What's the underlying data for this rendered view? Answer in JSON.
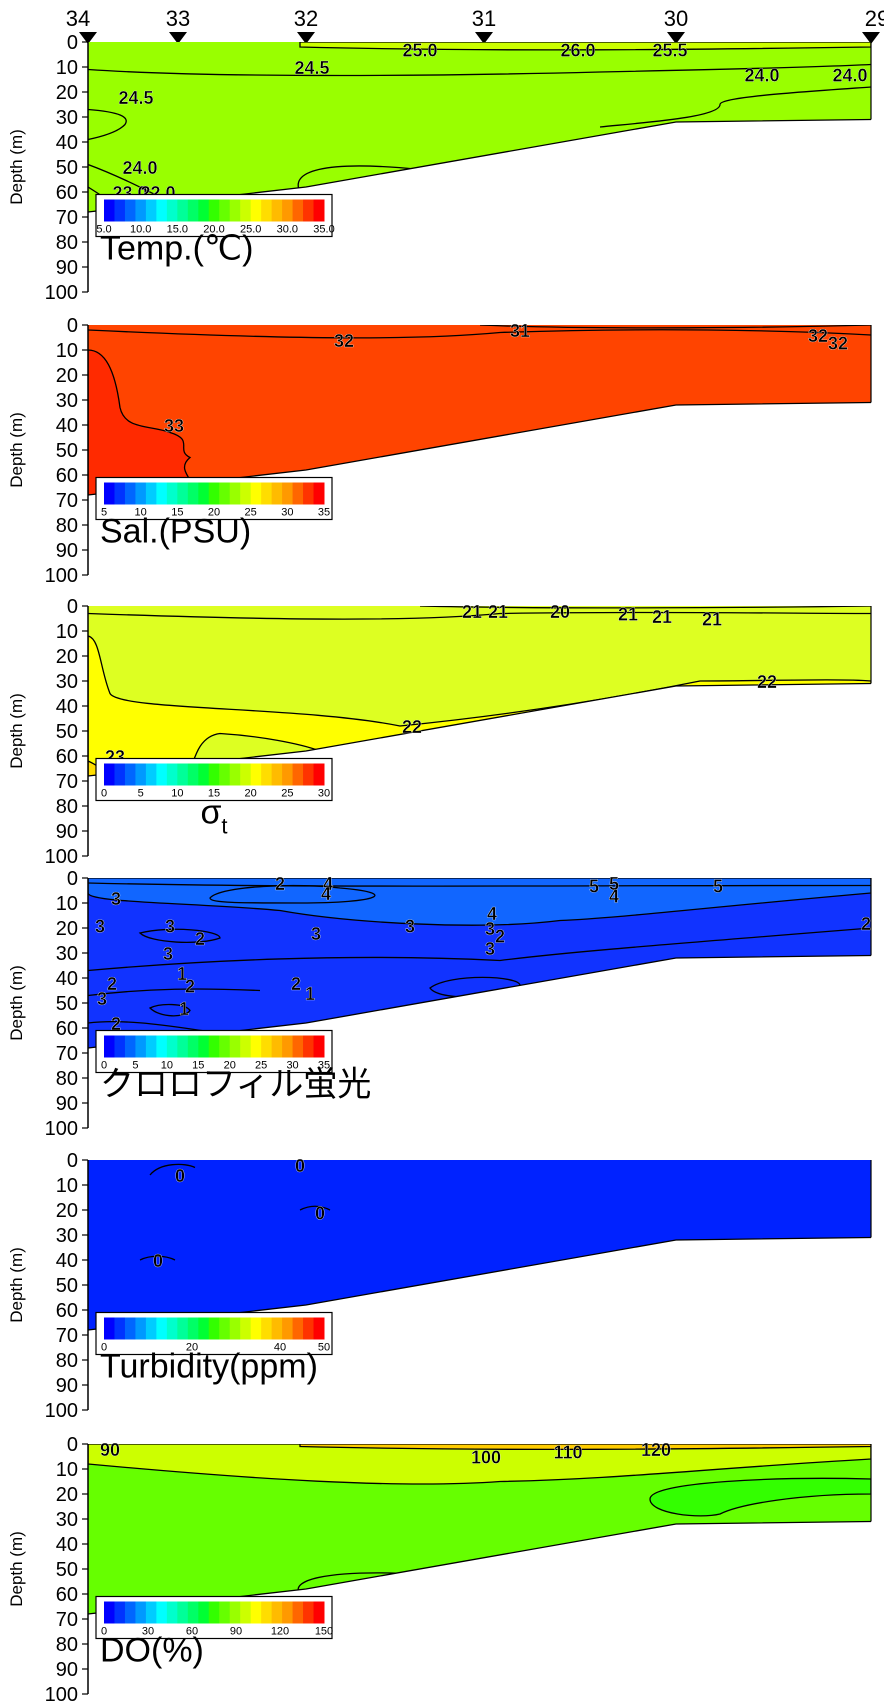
{
  "stations": [
    "34",
    "33",
    "32",
    "31",
    "30",
    "29"
  ],
  "y_axis": {
    "label": "Depth (m)",
    "ticks": [
      "0",
      "10",
      "20",
      "30",
      "40",
      "50",
      "60",
      "70",
      "80",
      "90",
      "100"
    ]
  },
  "colors": {
    "temp_fill": "#99ff00",
    "temp_surface": "#ccff00",
    "sal_fill": "#ff4400",
    "sal_deep": "#ff2a00",
    "sigma_fill": "#ddff22",
    "sigma_core": "#ffff00",
    "chl_fill": "#1133ff",
    "chl_top": "#1166ff",
    "turb_fill": "#0022ff",
    "do_fill": "#66ff00",
    "do_surface": "#ccff00",
    "do_top": "#ffcc00",
    "do_core": "#33ff00"
  },
  "chart_data": [
    {
      "type": "heatmap",
      "title": "Temp.(℃)",
      "stations": [
        "34",
        "33",
        "32",
        "31",
        "30",
        "29"
      ],
      "ylabel": "Depth (m)",
      "ylim": [
        0,
        100
      ],
      "contour_labels": [
        "25.0",
        "26.0",
        "25.5",
        "24.5",
        "24.0",
        "24.0",
        "24.5",
        "24.0",
        "23.0",
        "22.0"
      ],
      "colorbar": {
        "ticks": [
          "5.0",
          "10.0",
          "15.0",
          "20.0",
          "25.0",
          "30.0",
          "35.0"
        ],
        "range": [
          5,
          35
        ]
      }
    },
    {
      "type": "heatmap",
      "title": "Sal.(PSU)",
      "stations": [
        "34",
        "33",
        "32",
        "31",
        "30",
        "29"
      ],
      "ylabel": "Depth (m)",
      "ylim": [
        0,
        100
      ],
      "contour_labels": [
        "31",
        "32",
        "32",
        "32",
        "33"
      ],
      "colorbar": {
        "ticks": [
          "5",
          "10",
          "15",
          "20",
          "25",
          "30",
          "35"
        ],
        "range": [
          5,
          35
        ]
      }
    },
    {
      "type": "heatmap",
      "title": "σt",
      "stations": [
        "34",
        "33",
        "32",
        "31",
        "30",
        "29"
      ],
      "ylabel": "Depth (m)",
      "ylim": [
        0,
        100
      ],
      "contour_labels": [
        "21",
        "21",
        "20",
        "21",
        "21",
        "21",
        "22",
        "22",
        "23"
      ],
      "colorbar": {
        "ticks": [
          "0",
          "5",
          "10",
          "15",
          "20",
          "25",
          "30"
        ],
        "range": [
          0,
          30
        ]
      }
    },
    {
      "type": "heatmap",
      "title": "クロロフィル蛍光",
      "stations": [
        "34",
        "33",
        "32",
        "31",
        "30",
        "29"
      ],
      "ylabel": "Depth (m)",
      "ylim": [
        0,
        100
      ],
      "contour_labels": [
        "2",
        "4",
        "4",
        "5",
        "5",
        "4",
        "5",
        "3",
        "3",
        "3",
        "2",
        "3",
        "3",
        "4",
        "3",
        "2",
        "3",
        "3",
        "1",
        "2",
        "2",
        "1",
        "2",
        "3",
        "1",
        "2",
        "2",
        "2"
      ],
      "colorbar": {
        "ticks": [
          "0",
          "5",
          "10",
          "15",
          "20",
          "25",
          "30",
          "35"
        ],
        "range": [
          0,
          35
        ]
      }
    },
    {
      "type": "heatmap",
      "title": "Turbidity(ppm)",
      "stations": [
        "34",
        "33",
        "32",
        "31",
        "30",
        "29"
      ],
      "ylabel": "Depth (m)",
      "ylim": [
        0,
        100
      ],
      "contour_labels": [
        "0",
        "0",
        "0",
        "0"
      ],
      "colorbar": {
        "ticks": [
          "0",
          "20",
          "40",
          "50"
        ],
        "range": [
          0,
          50
        ]
      }
    },
    {
      "type": "heatmap",
      "title": "DO(%)",
      "stations": [
        "34",
        "33",
        "32",
        "31",
        "30",
        "29"
      ],
      "ylabel": "Depth (m)",
      "ylim": [
        0,
        100
      ],
      "contour_labels": [
        "90",
        "100",
        "110",
        "120"
      ],
      "colorbar": {
        "ticks": [
          "0",
          "30",
          "60",
          "90",
          "120",
          "150"
        ],
        "range": [
          0,
          150
        ]
      }
    }
  ]
}
